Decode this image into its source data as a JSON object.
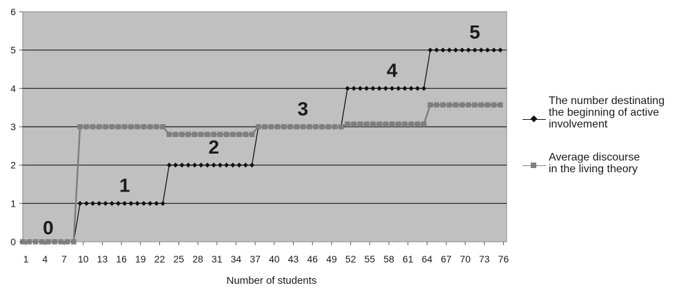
{
  "chart_data": {
    "type": "line",
    "title": "",
    "xlabel": "Number of students",
    "ylabel": "",
    "ylim": [
      0,
      6
    ],
    "yticks": [
      0,
      1,
      2,
      3,
      4,
      5,
      6
    ],
    "xlim": [
      1,
      77
    ],
    "xticks": [
      1,
      4,
      7,
      10,
      13,
      16,
      19,
      22,
      25,
      28,
      31,
      34,
      37,
      40,
      43,
      46,
      49,
      52,
      55,
      58,
      61,
      64,
      67,
      70,
      73,
      76
    ],
    "grid": true,
    "legend_position": "right",
    "plot_background": "#c0c0c0",
    "series": [
      {
        "name": "The number destinating\nthe beginning of active\ninvolvement",
        "color": "#111111",
        "marker": "diamond",
        "segments": [
          {
            "from": 1,
            "to": 9,
            "value": 0
          },
          {
            "from": 10,
            "to": 23,
            "value": 1
          },
          {
            "from": 24,
            "to": 37,
            "value": 2
          },
          {
            "from": 38,
            "to": 51,
            "value": 3
          },
          {
            "from": 52,
            "to": 64,
            "value": 4
          },
          {
            "from": 65,
            "to": 76,
            "value": 5
          }
        ]
      },
      {
        "name": "Average discourse\nin the living theory",
        "color": "#7f7f7f",
        "marker": "square",
        "segments": [
          {
            "from": 1,
            "to": 9,
            "value": 0
          },
          {
            "from": 10,
            "to": 23,
            "value": 3
          },
          {
            "from": 24,
            "to": 37,
            "value": 2.8
          },
          {
            "from": 38,
            "to": 51,
            "value": 3
          },
          {
            "from": 52,
            "to": 64,
            "value": 3.07
          },
          {
            "from": 65,
            "to": 76,
            "value": 3.57
          }
        ]
      }
    ],
    "annotations": [
      {
        "text": "0",
        "x": 5,
        "y": 0.2
      },
      {
        "text": "1",
        "x": 17,
        "y": 1.3
      },
      {
        "text": "2",
        "x": 31,
        "y": 2.3
      },
      {
        "text": "3",
        "x": 45,
        "y": 3.3
      },
      {
        "text": "4",
        "x": 59,
        "y": 4.3
      },
      {
        "text": "5",
        "x": 72,
        "y": 5.3
      }
    ]
  }
}
